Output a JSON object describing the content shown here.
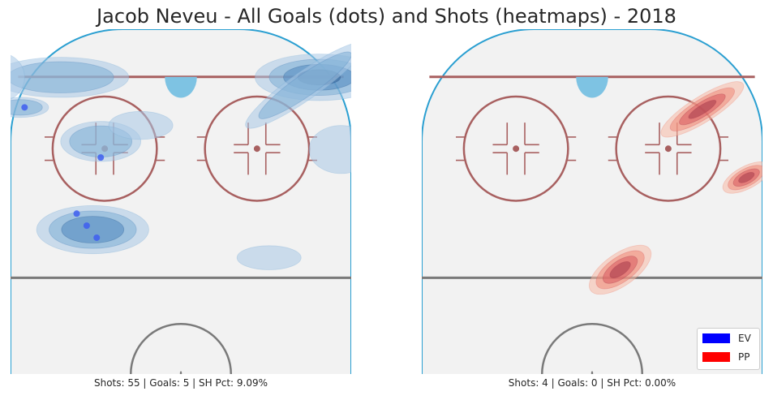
{
  "title": "Jacob Neveu - All Goals (dots) and Shots (heatmaps) - 2018",
  "colors": {
    "ev": "#0000ff",
    "pp": "#ff0000",
    "board": "#2a9fd1",
    "ice": "#f2f2f2",
    "red_line": "#a86060",
    "crease": "#7ec3e3",
    "center_line": "#7a7a7a"
  },
  "legend": [
    {
      "label": "EV",
      "color": "#0000ff"
    },
    {
      "label": "PP",
      "color": "#ff0000"
    }
  ],
  "chart_data": [
    {
      "type": "heatmap",
      "panel": "EV",
      "caption": "Shots: 55 | Goals: 5 | SH Pct: 9.09%",
      "stats": {
        "shots": 55,
        "goals": 5,
        "sh_pct": "9.09%"
      },
      "goals": [
        {
          "x": -21,
          "y": 52
        },
        {
          "x": -23.5,
          "y": 49
        },
        {
          "x": -26,
          "y": 46
        },
        {
          "x": -20,
          "y": 32
        },
        {
          "x": -39,
          "y": 19.5
        }
      ],
      "shot_density": [
        {
          "x": 34.5,
          "y": 12,
          "weight": 1.0
        },
        {
          "x": 31,
          "y": 14,
          "weight": 0.45
        },
        {
          "x": -22,
          "y": 50,
          "weight": 0.75
        },
        {
          "x": -30,
          "y": 12,
          "weight": 0.6
        },
        {
          "x": -40,
          "y": 19.5,
          "weight": 0.55
        },
        {
          "x": -20,
          "y": 28,
          "weight": 0.4
        },
        {
          "x": 40,
          "y": 30,
          "weight": 0.3
        },
        {
          "x": 22,
          "y": 57,
          "weight": 0.3
        },
        {
          "x": -45,
          "y": 12,
          "weight": 0.35
        },
        {
          "x": -10,
          "y": 24,
          "weight": 0.3
        }
      ]
    },
    {
      "type": "heatmap",
      "panel": "PP",
      "caption": "Shots: 4 | Goals: 0 | SH Pct: 0.00%",
      "stats": {
        "shots": 4,
        "goals": 0,
        "sh_pct": "0.00%"
      },
      "goals": [],
      "shot_density": [
        {
          "x": 7,
          "y": 60,
          "weight": 1.0
        },
        {
          "x": 38.5,
          "y": 37,
          "weight": 1.0
        },
        {
          "x": 27.5,
          "y": 20,
          "weight": 1.0
        }
      ]
    }
  ]
}
